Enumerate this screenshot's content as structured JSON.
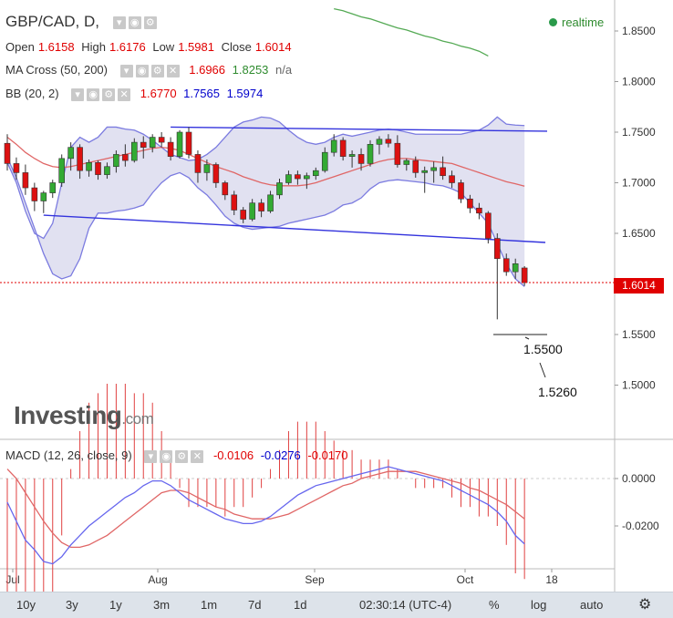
{
  "header": {
    "symbol": "GBP/CAD, D,",
    "open_label": "Open",
    "open": "1.6158",
    "high_label": "High",
    "high": "1.6176",
    "low_label": "Low",
    "low": "1.5981",
    "close_label": "Close",
    "close": "1.6014",
    "ma_label": "MA Cross (50, 200)",
    "ma_50": "1.6966",
    "ma_200": "1.8253",
    "ma_na": "n/a",
    "bb_label": "BB (20, 2)",
    "bb_mid": "1.6770",
    "bb_upper": "1.7565",
    "bb_lower": "1.5974",
    "realtime": "realtime"
  },
  "macd": {
    "label": "MACD (12, 26, close, 9)",
    "hist": "-0.0106",
    "macd": "-0.0276",
    "signal": "-0.0170"
  },
  "logo": {
    "main": "Investing",
    "suffix": ".com"
  },
  "price_tag": "1.6014",
  "annotations": {
    "target1": "1.5500",
    "target2": "1.5260"
  },
  "toolbar": {
    "buttons": [
      "10y",
      "3y",
      "1y",
      "3m",
      "1m",
      "7d",
      "1d"
    ],
    "time": "02:30:14 (UTC-4)",
    "percent": "%",
    "log": "log",
    "auto": "auto"
  },
  "colors": {
    "up": "#33aa33",
    "down": "#dd1111",
    "bb_fill": "#dcdcee",
    "bb_line": "#7b7be0",
    "ma50": "#e06666",
    "ma200": "#55aa55",
    "trend": "#3333dd"
  },
  "chart_data": [
    {
      "type": "candlestick",
      "title": "GBP/CAD, D,",
      "x": [
        "Jul",
        "Aug",
        "Sep",
        "Oct",
        "18"
      ],
      "ylim": [
        1.46,
        1.875
      ],
      "y_ticks": [
        "1.8500",
        "1.8000",
        "1.7500",
        "1.7000",
        "1.6500",
        "1.6000",
        "1.5500",
        "1.5000"
      ],
      "ohlc": [
        [
          1.739,
          1.748,
          1.712,
          1.719
        ],
        [
          1.719,
          1.725,
          1.703,
          1.71
        ],
        [
          1.71,
          1.718,
          1.688,
          1.695
        ],
        [
          1.695,
          1.7,
          1.672,
          1.682
        ],
        [
          1.682,
          1.692,
          1.67,
          1.69
        ],
        [
          1.69,
          1.703,
          1.685,
          1.7
        ],
        [
          1.7,
          1.728,
          1.696,
          1.724
        ],
        [
          1.724,
          1.74,
          1.712,
          1.735
        ],
        [
          1.735,
          1.738,
          1.704,
          1.712
        ],
        [
          1.712,
          1.723,
          1.706,
          1.72
        ],
        [
          1.72,
          1.722,
          1.703,
          1.708
        ],
        [
          1.708,
          1.72,
          1.704,
          1.716
        ],
        [
          1.716,
          1.732,
          1.71,
          1.728
        ],
        [
          1.728,
          1.738,
          1.716,
          1.722
        ],
        [
          1.722,
          1.744,
          1.72,
          1.74
        ],
        [
          1.74,
          1.746,
          1.724,
          1.735
        ],
        [
          1.735,
          1.748,
          1.73,
          1.745
        ],
        [
          1.745,
          1.75,
          1.735,
          1.74
        ],
        [
          1.74,
          1.745,
          1.722,
          1.726
        ],
        [
          1.726,
          1.752,
          1.724,
          1.75
        ],
        [
          1.75,
          1.755,
          1.724,
          1.728
        ],
        [
          1.728,
          1.732,
          1.7,
          1.71
        ],
        [
          1.71,
          1.723,
          1.702,
          1.718
        ],
        [
          1.718,
          1.72,
          1.695,
          1.7
        ],
        [
          1.7,
          1.702,
          1.683,
          1.688
        ],
        [
          1.688,
          1.692,
          1.668,
          1.673
        ],
        [
          1.673,
          1.676,
          1.66,
          1.664
        ],
        [
          1.664,
          1.684,
          1.662,
          1.68
        ],
        [
          1.68,
          1.684,
          1.666,
          1.672
        ],
        [
          1.672,
          1.692,
          1.67,
          1.688
        ],
        [
          1.688,
          1.704,
          1.684,
          1.7
        ],
        [
          1.7,
          1.712,
          1.698,
          1.708
        ],
        [
          1.708,
          1.712,
          1.698,
          1.704
        ],
        [
          1.704,
          1.71,
          1.694,
          1.707
        ],
        [
          1.707,
          1.715,
          1.703,
          1.712
        ],
        [
          1.712,
          1.735,
          1.71,
          1.73
        ],
        [
          1.73,
          1.748,
          1.726,
          1.742
        ],
        [
          1.742,
          1.745,
          1.722,
          1.726
        ],
        [
          1.726,
          1.732,
          1.715,
          1.728
        ],
        [
          1.728,
          1.734,
          1.712,
          1.719
        ],
        [
          1.719,
          1.742,
          1.716,
          1.738
        ],
        [
          1.738,
          1.746,
          1.728,
          1.743
        ],
        [
          1.743,
          1.748,
          1.735,
          1.739
        ],
        [
          1.739,
          1.747,
          1.715,
          1.718
        ],
        [
          1.718,
          1.724,
          1.712,
          1.722
        ],
        [
          1.722,
          1.726,
          1.705,
          1.71
        ],
        [
          1.71,
          1.716,
          1.69,
          1.712
        ],
        [
          1.712,
          1.721,
          1.7,
          1.715
        ],
        [
          1.715,
          1.726,
          1.703,
          1.707
        ],
        [
          1.707,
          1.712,
          1.695,
          1.7
        ],
        [
          1.7,
          1.703,
          1.68,
          1.684
        ],
        [
          1.684,
          1.688,
          1.67,
          1.675
        ],
        [
          1.675,
          1.68,
          1.664,
          1.67
        ],
        [
          1.67,
          1.672,
          1.64,
          1.645
        ],
        [
          1.645,
          1.65,
          1.565,
          1.625
        ],
        [
          1.625,
          1.63,
          1.608,
          1.612
        ],
        [
          1.612,
          1.625,
          1.605,
          1.62
        ],
        [
          1.6158,
          1.6176,
          1.5981,
          1.6014
        ]
      ],
      "bb_upper": [
        1.72,
        1.7,
        1.672,
        1.65,
        1.645,
        1.66,
        1.7,
        1.735,
        1.745,
        1.74,
        1.745,
        1.755,
        1.755,
        1.753,
        1.752,
        1.748,
        1.742,
        1.735,
        1.728,
        1.725,
        1.722,
        1.723,
        1.728,
        1.735,
        1.745,
        1.755,
        1.76,
        1.762,
        1.765,
        1.764,
        1.76,
        1.752,
        1.745,
        1.74,
        1.738,
        1.74,
        1.745,
        1.748,
        1.746,
        1.748,
        1.75,
        1.752,
        1.753,
        1.752,
        1.75,
        1.748,
        1.748,
        1.748,
        1.748,
        1.748,
        1.748,
        1.75,
        1.752,
        1.757,
        1.765,
        1.758,
        1.757,
        1.7565
      ],
      "bb_lower": [
        1.725,
        1.705,
        1.68,
        1.655,
        1.63,
        1.61,
        1.605,
        1.608,
        1.625,
        1.655,
        1.67,
        1.67,
        1.672,
        1.673,
        1.675,
        1.678,
        1.69,
        1.7,
        1.707,
        1.71,
        1.705,
        1.695,
        1.688,
        1.678,
        1.667,
        1.66,
        1.656,
        1.654,
        1.655,
        1.656,
        1.657,
        1.66,
        1.662,
        1.664,
        1.666,
        1.668,
        1.672,
        1.678,
        1.68,
        1.685,
        1.694,
        1.7,
        1.702,
        1.703,
        1.702,
        1.701,
        1.7,
        1.698,
        1.697,
        1.694,
        1.69,
        1.68,
        1.67,
        1.66,
        1.64,
        1.62,
        1.605,
        1.5974
      ],
      "ma50": [
        1.745,
        1.738,
        1.73,
        1.724,
        1.719,
        1.716,
        1.715,
        1.716,
        1.718,
        1.72,
        1.722,
        1.724,
        1.726,
        1.728,
        1.73,
        1.732,
        1.734,
        1.735,
        1.734,
        1.732,
        1.728,
        1.724,
        1.72,
        1.716,
        1.713,
        1.71,
        1.706,
        1.703,
        1.7,
        1.698,
        1.697,
        1.697,
        1.697,
        1.698,
        1.7,
        1.703,
        1.706,
        1.709,
        1.712,
        1.715,
        1.718,
        1.721,
        1.723,
        1.724,
        1.724,
        1.723,
        1.722,
        1.721,
        1.72,
        1.719,
        1.716,
        1.713,
        1.71,
        1.707,
        1.704,
        1.701,
        1.699,
        1.6966
      ],
      "ma200": [
        1.872,
        1.87,
        1.867,
        1.864,
        1.862,
        1.859,
        1.856,
        1.853,
        1.851,
        1.848,
        1.845,
        1.843,
        1.84,
        1.838,
        1.835,
        1.833,
        1.83,
        1.8253
      ],
      "trendlines": [
        {
          "from": 1.755,
          "to": 1.751
        },
        {
          "from": 1.668,
          "to": 1.641
        }
      ],
      "targets": [
        1.55,
        1.526
      ]
    },
    {
      "type": "line",
      "title": "MACD (12, 26, close, 9)",
      "y_ticks": [
        "0.0000",
        "-0.0200"
      ],
      "ylim": [
        -0.036,
        0.008
      ],
      "macd": [
        -0.01,
        -0.018,
        -0.026,
        -0.03,
        -0.035,
        -0.036,
        -0.033,
        -0.028,
        -0.024,
        -0.02,
        -0.017,
        -0.014,
        -0.011,
        -0.008,
        -0.006,
        -0.003,
        -0.001,
        -0.001,
        -0.003,
        -0.006,
        -0.009,
        -0.011,
        -0.013,
        -0.015,
        -0.017,
        -0.018,
        -0.019,
        -0.019,
        -0.018,
        -0.016,
        -0.013,
        -0.01,
        -0.007,
        -0.005,
        -0.003,
        -0.002,
        -0.001,
        0.0,
        0.001,
        0.002,
        0.003,
        0.004,
        0.005,
        0.004,
        0.003,
        0.002,
        0.001,
        0.0,
        -0.001,
        -0.003,
        -0.005,
        -0.007,
        -0.009,
        -0.011,
        -0.014,
        -0.018,
        -0.024,
        -0.0276
      ],
      "signal": [
        0.004,
        0.0,
        -0.006,
        -0.012,
        -0.018,
        -0.023,
        -0.027,
        -0.029,
        -0.029,
        -0.028,
        -0.026,
        -0.024,
        -0.021,
        -0.018,
        -0.015,
        -0.012,
        -0.009,
        -0.006,
        -0.005,
        -0.005,
        -0.006,
        -0.008,
        -0.01,
        -0.012,
        -0.013,
        -0.015,
        -0.016,
        -0.017,
        -0.017,
        -0.017,
        -0.016,
        -0.015,
        -0.013,
        -0.011,
        -0.009,
        -0.007,
        -0.005,
        -0.003,
        -0.002,
        0.0,
        0.001,
        0.002,
        0.003,
        0.003,
        0.003,
        0.003,
        0.002,
        0.001,
        0.0,
        -0.001,
        -0.002,
        -0.004,
        -0.005,
        -0.007,
        -0.009,
        -0.011,
        -0.014,
        -0.017
      ]
    }
  ]
}
